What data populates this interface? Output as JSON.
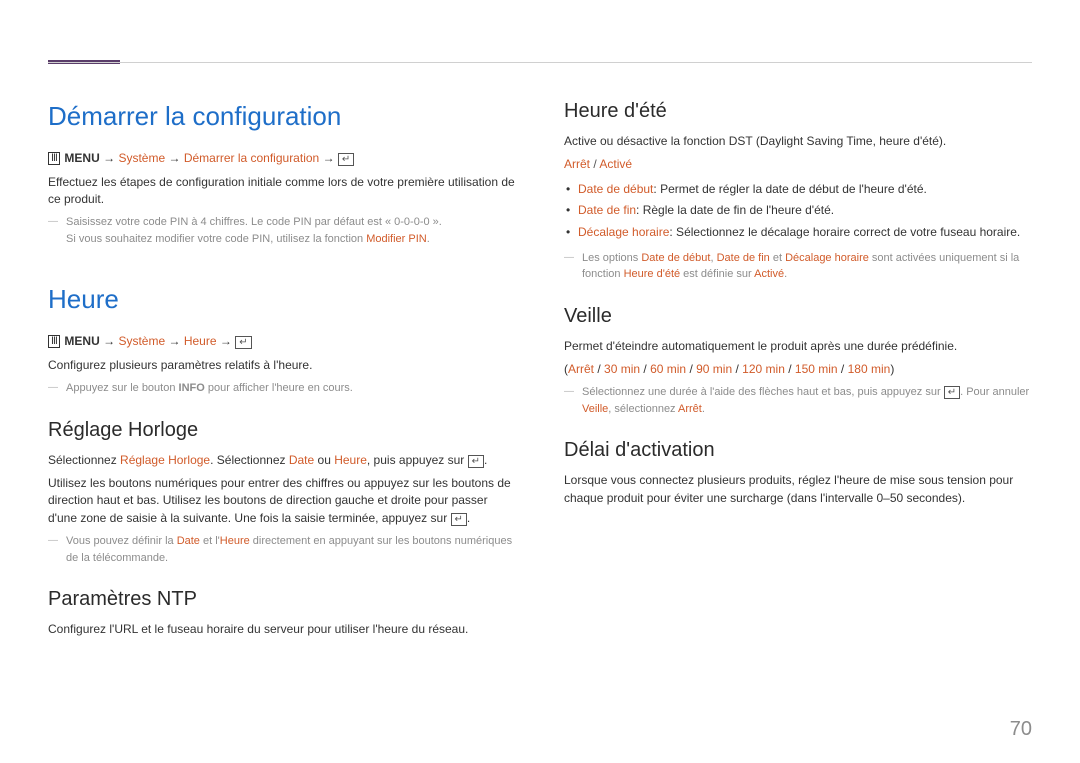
{
  "pageNumber": "70",
  "colors": {
    "accent": "#1e6ec8",
    "highlight": "#d15b2a",
    "rule": "#5a3d6a"
  },
  "breadcrumb": {
    "menu": "MENU",
    "arrow": "→",
    "systeme": "Système"
  },
  "left": {
    "sec1": {
      "title": "Démarrer la configuration",
      "bc_last": "Démarrer la configuration",
      "p1": "Effectuez les étapes de configuration initiale comme lors de votre première utilisation de ce produit.",
      "note_a": "Saisissez votre code PIN à 4 chiffres. Le code PIN par défaut est « 0-0-0-0 ».",
      "note_b_pre": "Si vous souhaitez modifier votre code PIN, utilisez la fonction ",
      "note_b_hl": "Modifier PIN",
      "note_b_post": "."
    },
    "sec2": {
      "title": "Heure",
      "bc_last": "Heure",
      "p1": "Configurez plusieurs paramètres relatifs à l'heure.",
      "note_pre": "Appuyez sur le bouton ",
      "note_bold": "INFO",
      "note_post": " pour afficher l'heure en cours."
    },
    "sec3": {
      "title": "Réglage Horloge",
      "p1_a": "Sélectionnez ",
      "p1_b": "Réglage Horloge",
      "p1_c": ". Sélectionnez ",
      "p1_d": "Date",
      "p1_e": " ou ",
      "p1_f": "Heure",
      "p1_g": ", puis appuyez sur ",
      "p2": "Utilisez les boutons numériques pour entrer des chiffres ou appuyez sur les boutons de direction haut et bas. Utilisez les boutons de direction gauche et droite pour passer d'une zone de saisie à la suivante. Une fois la saisie terminée, appuyez sur ",
      "note_a": "Vous pouvez définir la ",
      "note_b": "Date",
      "note_c": " et l'",
      "note_d": "Heure",
      "note_e": " directement en appuyant sur les boutons numériques de la télécommande."
    },
    "sec4": {
      "title": "Paramètres NTP",
      "p1": "Configurez l'URL et le fuseau horaire du serveur pour utiliser l'heure du réseau."
    }
  },
  "right": {
    "sec1": {
      "title": "Heure d'été",
      "p1": "Active ou désactive la fonction DST (Daylight Saving Time, heure d'été).",
      "opt_off": "Arrêt",
      "opt_on": "Activé",
      "bullets": [
        {
          "k": "Date de début",
          "v": ": Permet de régler la date de début de l'heure d'été."
        },
        {
          "k": "Date de fin",
          "v": ": Règle la date de fin de l'heure d'été."
        },
        {
          "k": "Décalage horaire",
          "v": ": Sélectionnez le décalage horaire correct de votre fuseau horaire."
        }
      ],
      "note_a": "Les options ",
      "note_b": "Date de début",
      "note_c": ", ",
      "note_d": "Date de fin",
      "note_e": " et ",
      "note_f": "Décalage horaire",
      "note_g": " sont activées uniquement si la fonction ",
      "note_h": "Heure d'été",
      "note_i": " est définie sur ",
      "note_j": "Activé",
      "note_k": "."
    },
    "sec2": {
      "title": "Veille",
      "p1": "Permet d'éteindre automatiquement le produit après une durée prédéfinie.",
      "opts": [
        "Arrêt",
        "30 min",
        "60 min",
        "90 min",
        "120 min",
        "150 min",
        "180 min"
      ],
      "note_a": "Sélectionnez une durée à l'aide des flèches haut et bas, puis appuyez sur ",
      "note_b": ". Pour annuler ",
      "note_c": "Veille",
      "note_d": ", sélectionnez ",
      "note_e": "Arrêt",
      "note_f": "."
    },
    "sec3": {
      "title": "Délai d'activation",
      "p1": "Lorsque vous connectez plusieurs produits, réglez l'heure de mise sous tension pour chaque produit pour éviter une surcharge (dans l'intervalle 0–50 secondes)."
    }
  }
}
